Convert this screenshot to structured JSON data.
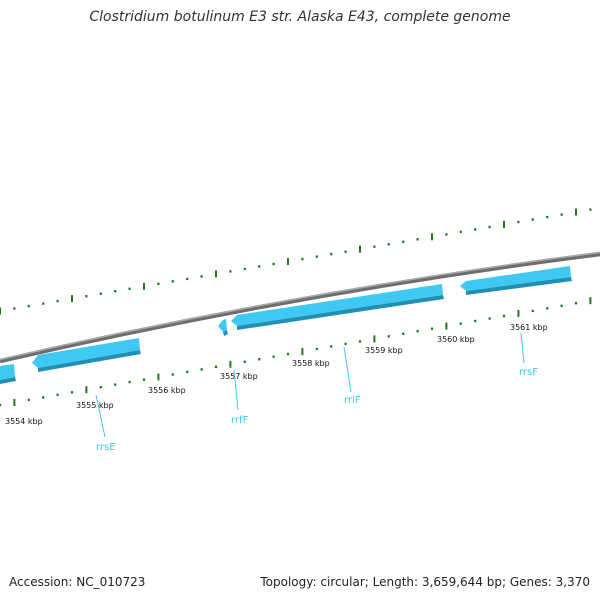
{
  "title": "Clostridium botulinum E3 str. Alaska E43, complete genome",
  "ruler": {
    "labels": [
      "3554 kbp",
      "3555 kbp",
      "3556 kbp",
      "3557 kbp",
      "3558 kbp",
      "3559 kbp",
      "3560 kbp",
      "3561 kbp"
    ]
  },
  "genes": [
    {
      "name": "rrsE",
      "strand": "-"
    },
    {
      "name": "rrfF",
      "strand": "-"
    },
    {
      "name": "rrlF",
      "strand": "-"
    },
    {
      "name": "rrsF",
      "strand": "-"
    }
  ],
  "footer": {
    "accession": "Accession: NC_010723",
    "summary": "Topology: circular; Length: 3,659,644 bp; Genes: 3,370"
  },
  "colors": {
    "gene_fill": "#3ec8f2",
    "gene_shadow": "#1f8fb3",
    "tick": "#1a7f1a",
    "backbone": "#8a8a8a",
    "label_line": "#3ec8f2"
  }
}
